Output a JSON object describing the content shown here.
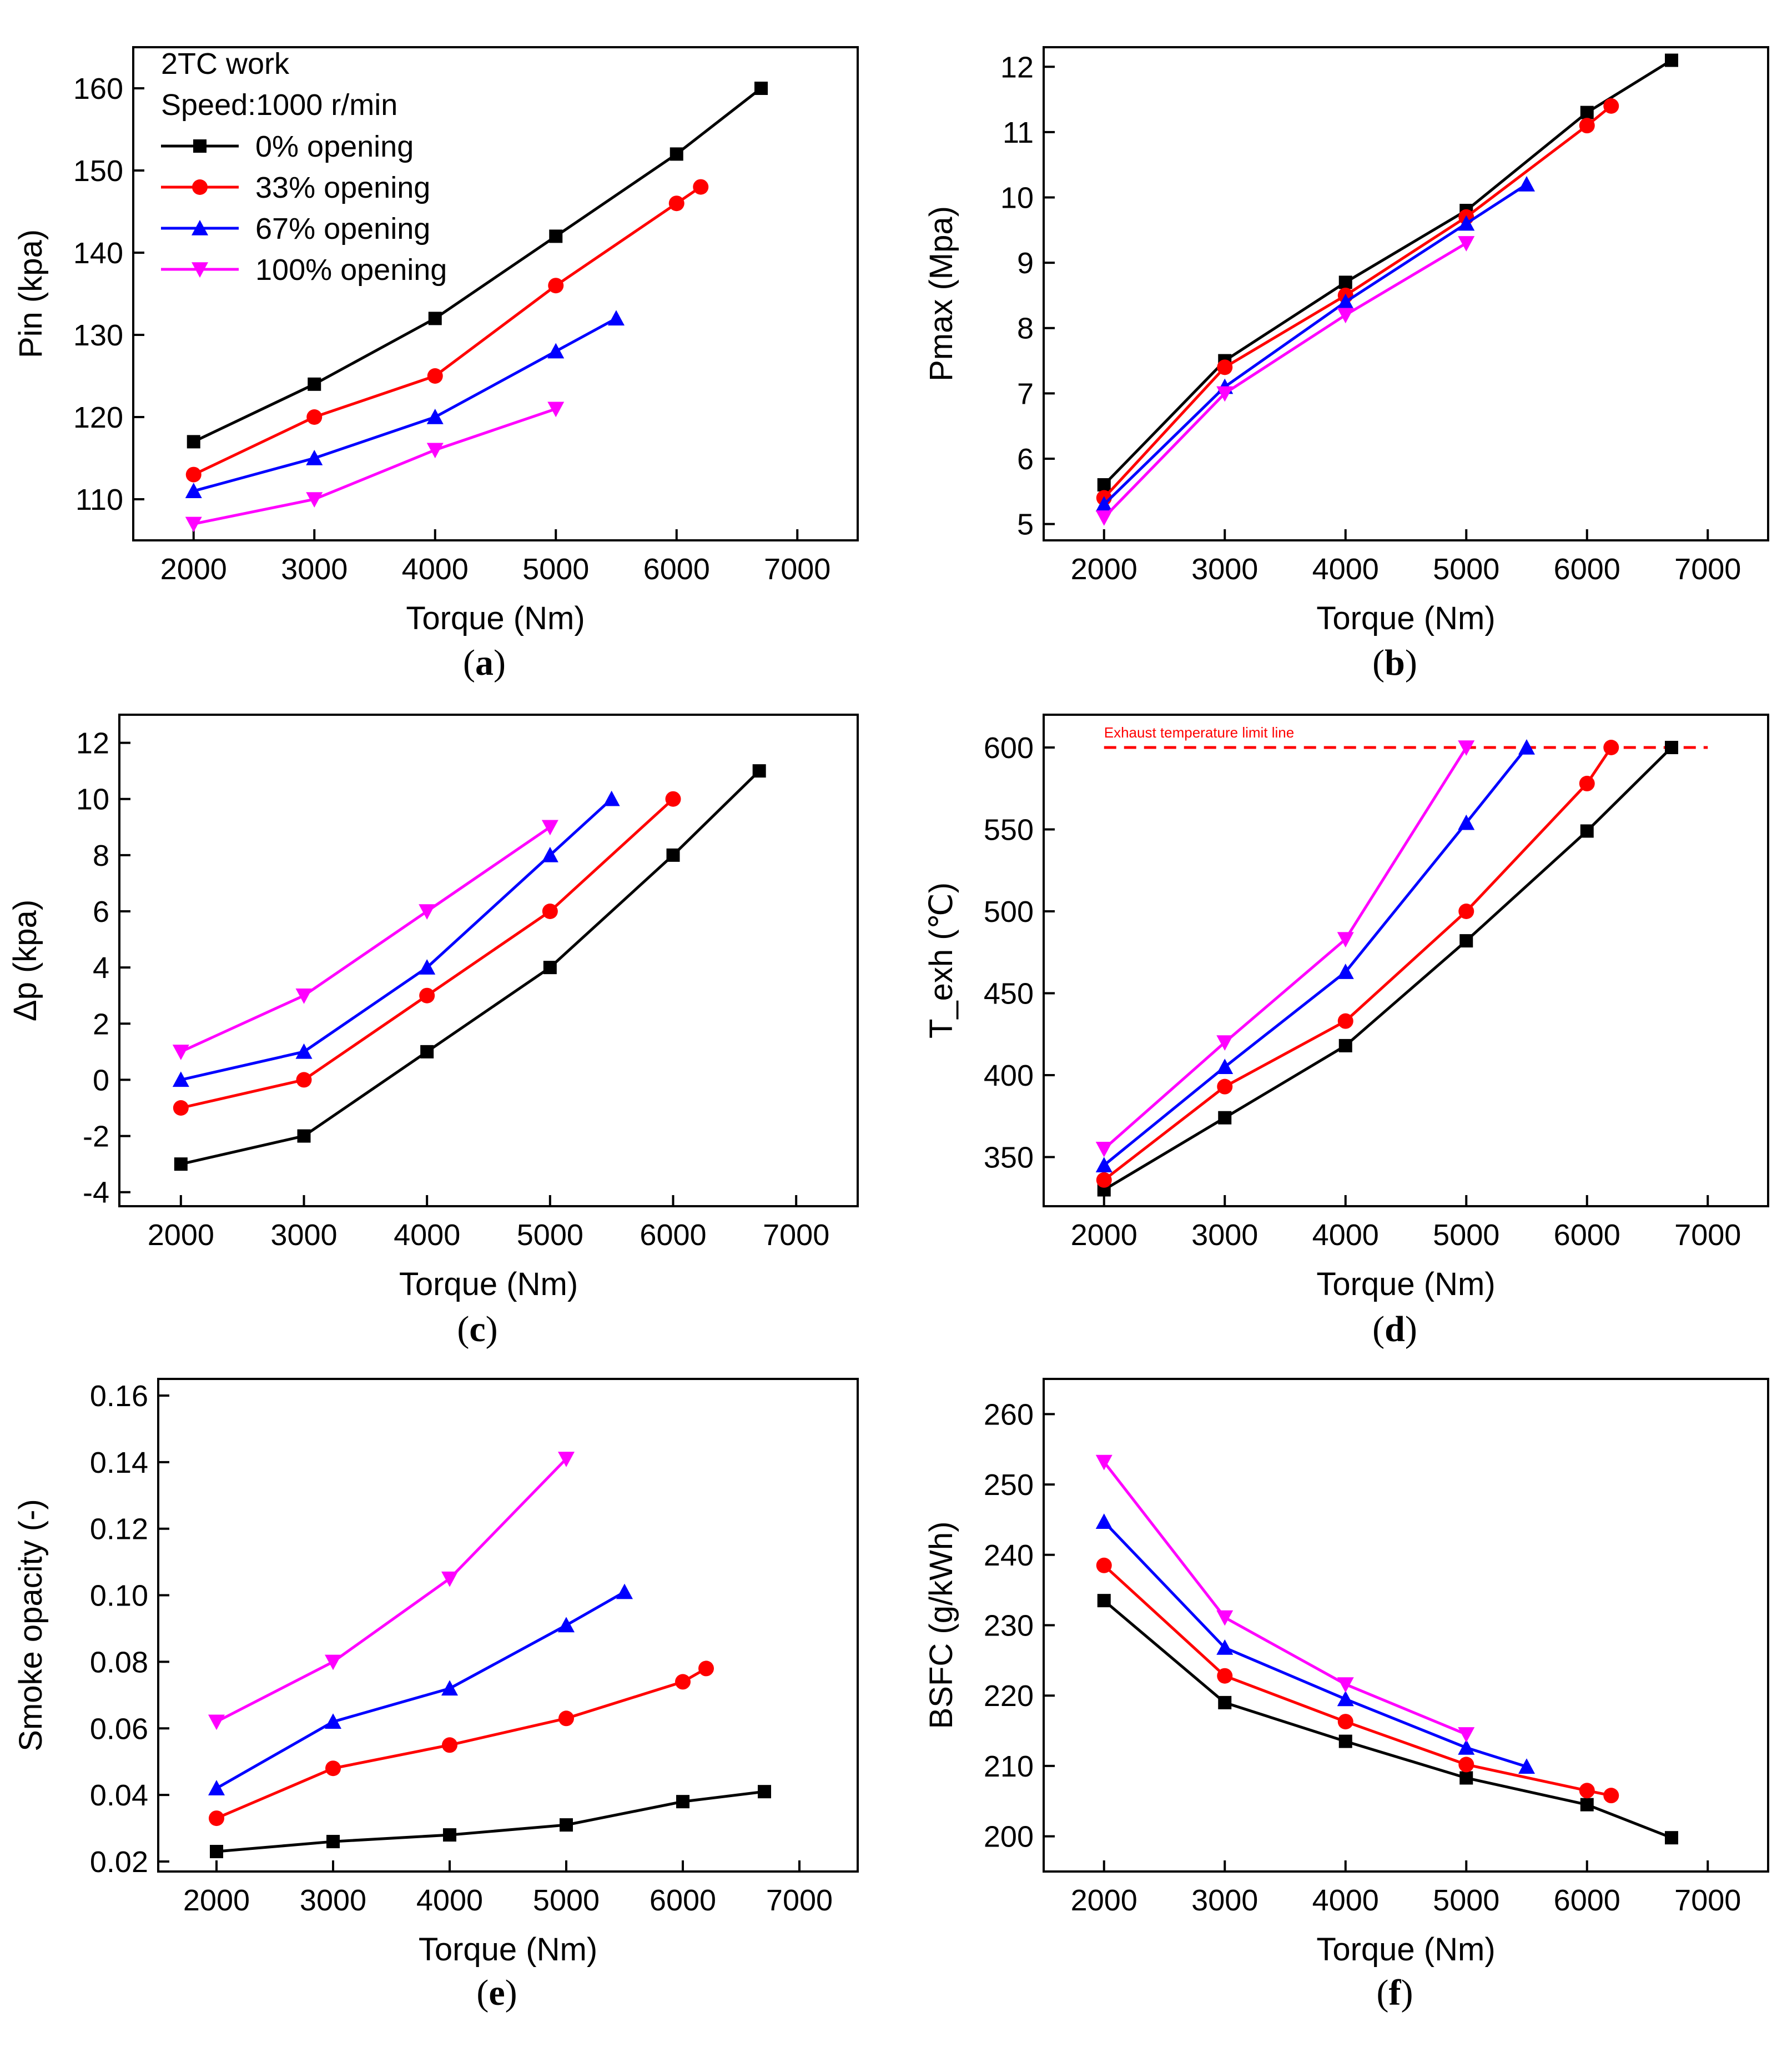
{
  "series_styles": [
    {
      "name": "0% opening",
      "color": "#000000",
      "marker": "square"
    },
    {
      "name": "33% opening",
      "color": "#ff0000",
      "marker": "circle"
    },
    {
      "name": "67% opening",
      "color": "#0000ff",
      "marker": "triangle-up"
    },
    {
      "name": "100% opening",
      "color": "#ff00ff",
      "marker": "triangle-down"
    }
  ],
  "legend_annotation": [
    "2TC work",
    "Speed:1000 r/min"
  ],
  "chart_data": [
    {
      "panel": "a",
      "caption_label": "a",
      "type": "line",
      "xlabel": "Torque (Nm)",
      "ylabel": "Pin (kpa)",
      "xlim": [
        1500,
        7500
      ],
      "ylim": [
        105,
        165
      ],
      "xticks": [
        2000,
        3000,
        4000,
        5000,
        6000,
        7000
      ],
      "yticks": [
        110,
        120,
        130,
        140,
        150,
        160
      ],
      "ytick_labels": [
        "110",
        "120",
        "130",
        "140",
        "150",
        "160"
      ],
      "legend": "top-left",
      "series": [
        {
          "name": "0% opening",
          "x": [
            2000,
            3000,
            4000,
            5000,
            6000,
            6700
          ],
          "y": [
            117,
            124,
            132,
            142,
            152,
            160
          ]
        },
        {
          "name": "33% opening",
          "x": [
            2000,
            3000,
            4000,
            5000,
            6000,
            6200
          ],
          "y": [
            113,
            120,
            125,
            136,
            146,
            148
          ]
        },
        {
          "name": "67% opening",
          "x": [
            2000,
            3000,
            4000,
            5000,
            5500
          ],
          "y": [
            111,
            115,
            120,
            128,
            132
          ]
        },
        {
          "name": "100% opening",
          "x": [
            2000,
            3000,
            4000,
            5000
          ],
          "y": [
            107,
            110,
            116,
            121
          ]
        }
      ]
    },
    {
      "panel": "b",
      "caption_label": "b",
      "type": "line",
      "xlabel": "Torque (Nm)",
      "ylabel": "Pmax (Mpa)",
      "xlim": [
        1500,
        7500
      ],
      "ylim": [
        4.75,
        12.3
      ],
      "xticks": [
        2000,
        3000,
        4000,
        5000,
        6000,
        7000
      ],
      "yticks": [
        5,
        6,
        7,
        8,
        9,
        10,
        11,
        12
      ],
      "ytick_labels": [
        "5",
        "6",
        "7",
        "8",
        "9",
        "10",
        "11",
        "12"
      ],
      "series": [
        {
          "name": "0% opening",
          "x": [
            2000,
            3000,
            4000,
            5000,
            6000,
            6700
          ],
          "y": [
            5.6,
            7.5,
            8.7,
            9.8,
            11.3,
            12.1
          ]
        },
        {
          "name": "33% opening",
          "x": [
            2000,
            3000,
            4000,
            5000,
            6000,
            6200
          ],
          "y": [
            5.4,
            7.4,
            8.5,
            9.7,
            11.1,
            11.4
          ]
        },
        {
          "name": "67% opening",
          "x": [
            2000,
            3000,
            4000,
            5000,
            5500
          ],
          "y": [
            5.3,
            7.1,
            8.4,
            9.6,
            10.2
          ]
        },
        {
          "name": "100% opening",
          "x": [
            2000,
            3000,
            4000,
            5000
          ],
          "y": [
            5.1,
            7.0,
            8.2,
            9.3
          ]
        }
      ]
    },
    {
      "panel": "c",
      "caption_label": "c",
      "type": "line",
      "xlabel": "Torque (Nm)",
      "ylabel": "Δp (kpa)",
      "xlim": [
        1500,
        7500
      ],
      "ylim": [
        -4.5,
        13
      ],
      "xticks": [
        2000,
        3000,
        4000,
        5000,
        6000,
        7000
      ],
      "yticks": [
        -4,
        -2,
        0,
        2,
        4,
        6,
        8,
        10,
        12
      ],
      "ytick_labels": [
        "-4",
        "-2",
        "0",
        "2",
        "4",
        "6",
        "8",
        "10",
        "12"
      ],
      "series": [
        {
          "name": "0% opening",
          "x": [
            2000,
            3000,
            4000,
            5000,
            6000,
            6700
          ],
          "y": [
            -3,
            -2,
            1,
            4,
            8,
            11
          ]
        },
        {
          "name": "33% opening",
          "x": [
            2000,
            3000,
            4000,
            5000,
            6000
          ],
          "y": [
            -1,
            0,
            3,
            6,
            10
          ]
        },
        {
          "name": "67% opening",
          "x": [
            2000,
            3000,
            4000,
            5000,
            5500
          ],
          "y": [
            0,
            1,
            4,
            8,
            10
          ]
        },
        {
          "name": "100% opening",
          "x": [
            2000,
            3000,
            4000,
            5000
          ],
          "y": [
            1,
            3,
            6,
            9
          ]
        }
      ]
    },
    {
      "panel": "d",
      "caption_label": "d",
      "type": "line",
      "xlabel": "Torque (Nm)",
      "ylabel": "T_exh (℃)",
      "xlim": [
        1500,
        7500
      ],
      "ylim": [
        320,
        620
      ],
      "xticks": [
        2000,
        3000,
        4000,
        5000,
        6000,
        7000
      ],
      "yticks": [
        350,
        400,
        450,
        500,
        550,
        600
      ],
      "ytick_labels": [
        "350",
        "400",
        "450",
        "500",
        "550",
        "600"
      ],
      "reference_line": {
        "y": 600,
        "x_start": 2000,
        "x_end": 7000,
        "color": "#ff0000",
        "label": "Exhaust temperature limit line"
      },
      "series": [
        {
          "name": "0% opening",
          "x": [
            2000,
            3000,
            4000,
            5000,
            6000,
            6700
          ],
          "y": [
            330,
            374,
            418,
            482,
            549,
            600
          ]
        },
        {
          "name": "33% opening",
          "x": [
            2000,
            3000,
            4000,
            5000,
            6000,
            6200
          ],
          "y": [
            336,
            393,
            433,
            500,
            578,
            600
          ]
        },
        {
          "name": "67% opening",
          "x": [
            2000,
            3000,
            4000,
            5000,
            5500
          ],
          "y": [
            345,
            405,
            463,
            554,
            600
          ]
        },
        {
          "name": "100% opening",
          "x": [
            2000,
            3000,
            4000,
            5000
          ],
          "y": [
            355,
            420,
            483,
            600
          ]
        }
      ]
    },
    {
      "panel": "e",
      "caption_label": "e",
      "type": "line",
      "xlabel": "Torque (Nm)",
      "ylabel": "Smoke opacity (-)",
      "xlim": [
        1500,
        7500
      ],
      "ylim": [
        0.017,
        0.165
      ],
      "xticks": [
        2000,
        3000,
        4000,
        5000,
        6000,
        7000
      ],
      "yticks": [
        0.02,
        0.04,
        0.06,
        0.08,
        0.1,
        0.12,
        0.14,
        0.16
      ],
      "ytick_labels": [
        "0.02",
        "0.04",
        "0.06",
        "0.08",
        "0.10",
        "0.12",
        "0.14",
        "0.16"
      ],
      "series": [
        {
          "name": "0% opening",
          "x": [
            2000,
            3000,
            4000,
            5000,
            6000,
            6700
          ],
          "y": [
            0.023,
            0.026,
            0.028,
            0.031,
            0.038,
            0.041
          ]
        },
        {
          "name": "33% opening",
          "x": [
            2000,
            3000,
            4000,
            5000,
            6000,
            6200
          ],
          "y": [
            0.033,
            0.048,
            0.055,
            0.063,
            0.074,
            0.078
          ]
        },
        {
          "name": "67% opening",
          "x": [
            2000,
            3000,
            4000,
            5000,
            5500
          ],
          "y": [
            0.042,
            0.062,
            0.072,
            0.091,
            0.101
          ]
        },
        {
          "name": "100% opening",
          "x": [
            2000,
            3000,
            4000,
            5000
          ],
          "y": [
            0.062,
            0.08,
            0.105,
            0.141
          ]
        }
      ]
    },
    {
      "panel": "f",
      "caption_label": "f",
      "type": "line",
      "xlabel": "Torque (Nm)",
      "ylabel": "BSFC (g/kWh)",
      "xlim": [
        1500,
        7500
      ],
      "ylim": [
        195,
        265
      ],
      "xticks": [
        2000,
        3000,
        4000,
        5000,
        6000,
        7000
      ],
      "yticks": [
        200,
        210,
        220,
        230,
        240,
        250,
        260
      ],
      "ytick_labels": [
        "200",
        "210",
        "220",
        "230",
        "240",
        "250",
        "260"
      ],
      "series": [
        {
          "name": "0% opening",
          "x": [
            2000,
            3000,
            4000,
            5000,
            6000,
            6700
          ],
          "y": [
            233.5,
            219,
            213.5,
            208.3,
            204.5,
            199.8
          ]
        },
        {
          "name": "33% opening",
          "x": [
            2000,
            3000,
            4000,
            5000,
            6000,
            6200
          ],
          "y": [
            238.5,
            222.8,
            216.3,
            210.2,
            206.5,
            205.8
          ]
        },
        {
          "name": "67% opening",
          "x": [
            2000,
            3000,
            4000,
            5000,
            5500
          ],
          "y": [
            244.7,
            226.8,
            219.5,
            212.6,
            209.9
          ]
        },
        {
          "name": "100% opening",
          "x": [
            2000,
            3000,
            4000,
            5000
          ],
          "y": [
            253.2,
            231.1,
            221.6,
            214.5
          ]
        }
      ]
    }
  ]
}
